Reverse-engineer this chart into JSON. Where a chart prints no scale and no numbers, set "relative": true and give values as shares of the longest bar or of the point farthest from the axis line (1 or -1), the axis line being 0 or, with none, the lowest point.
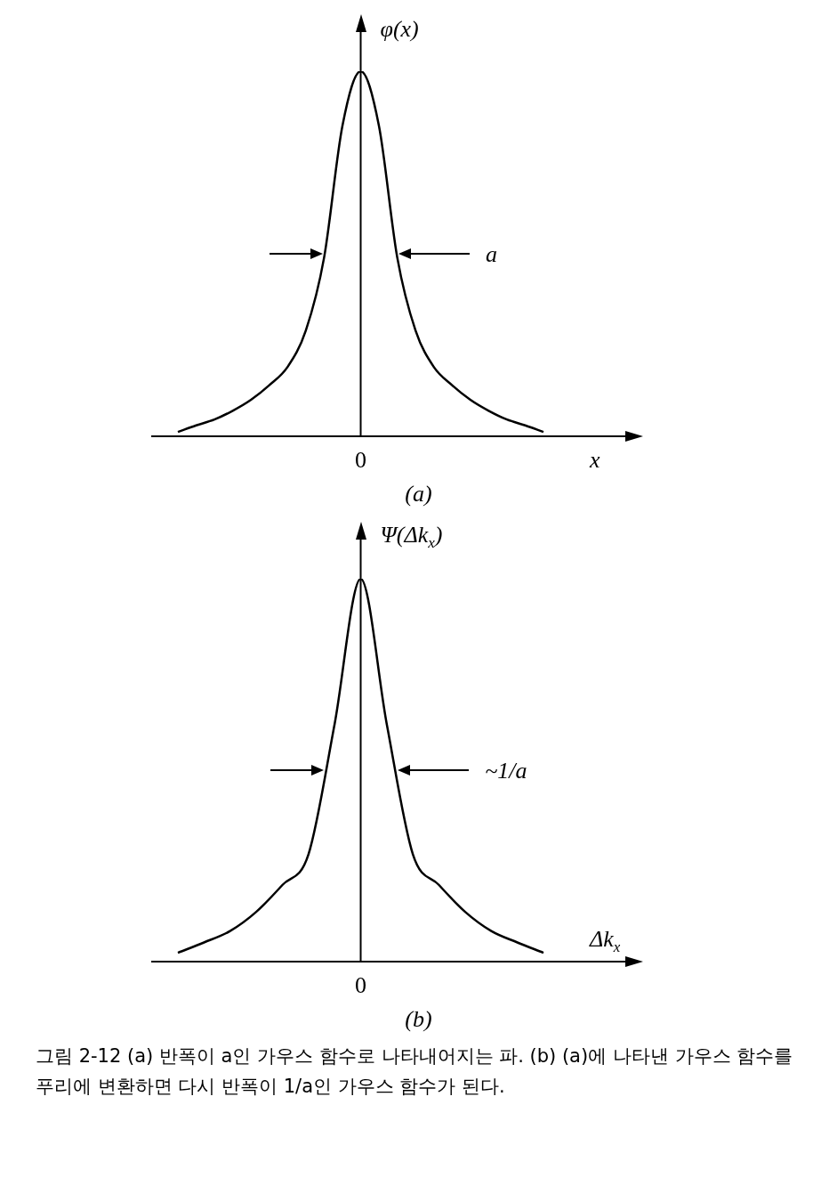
{
  "chart_data": [
    {
      "type": "line",
      "relative": true,
      "ylabel": "φ(x)",
      "xlabel": "x",
      "categories": [
        null,
        null,
        null,
        null,
        null,
        null,
        null,
        null,
        null,
        null,
        null,
        null,
        null,
        null,
        null,
        null,
        null,
        null,
        null,
        null,
        null
      ],
      "series": [
        {
          "color": "#000000",
          "values": [
            0.012,
            0.03,
            0.046,
            0.07,
            0.1,
            0.14,
            0.19,
            0.29,
            0.49,
            0.85,
            1,
            0.85,
            0.49,
            0.29,
            0.19,
            0.14,
            0.1,
            0.07,
            0.046,
            0.03,
            0.012
          ]
        }
      ],
      "annotations": [
        "a",
        "0",
        "(a)"
      ],
      "grid": false,
      "legend": false,
      "marker": "none",
      "line_style": "solid",
      "tick_labels": "x"
    },
    {
      "type": "line",
      "relative": true,
      "ylabel": "Ψ(Δk$_{x}$)",
      "xlabel": "Δk$_{x}$",
      "categories": [
        null,
        null,
        null,
        null,
        null,
        null,
        null,
        null,
        null,
        null,
        null,
        null,
        null,
        null,
        null
      ],
      "series": [
        {
          "color": "#000000",
          "values": [
            0.023,
            0.05,
            0.08,
            0.13,
            0.2,
            0.28,
            0.62,
            1,
            0.62,
            0.28,
            0.2,
            0.13,
            0.08,
            0.05,
            0.023
          ]
        }
      ],
      "annotations": [
        "~1/a",
        "0",
        "(b)",
        "그림 2-12  (a) 반폭이 a인 가우스 함수로 나타내어지는 파. (b) (a)에 나타낸 가우스 함수를 푸리에 변환하면 다시 반폭이 1/a인 가우스 함수가 된다."
      ],
      "grid": false,
      "legend": false,
      "marker": "none",
      "line_style": "solid",
      "tick_labels": "x"
    }
  ]
}
